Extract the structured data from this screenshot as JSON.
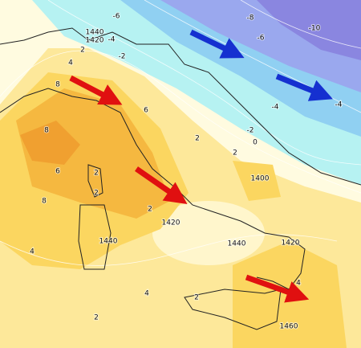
{
  "contour_labels": [
    "-6",
    "-8",
    "-10",
    "1440",
    "1420",
    "-4",
    "-6",
    "-2",
    "2",
    "4",
    "-4",
    "-4",
    "8",
    "6",
    "-2",
    "0",
    "8",
    "2",
    "2",
    "6",
    "2",
    "1400",
    "8",
    "2",
    "2",
    "1420",
    "1440",
    "1440",
    "1420",
    "4",
    "4",
    "4",
    "2",
    "2",
    "1460"
  ]
}
